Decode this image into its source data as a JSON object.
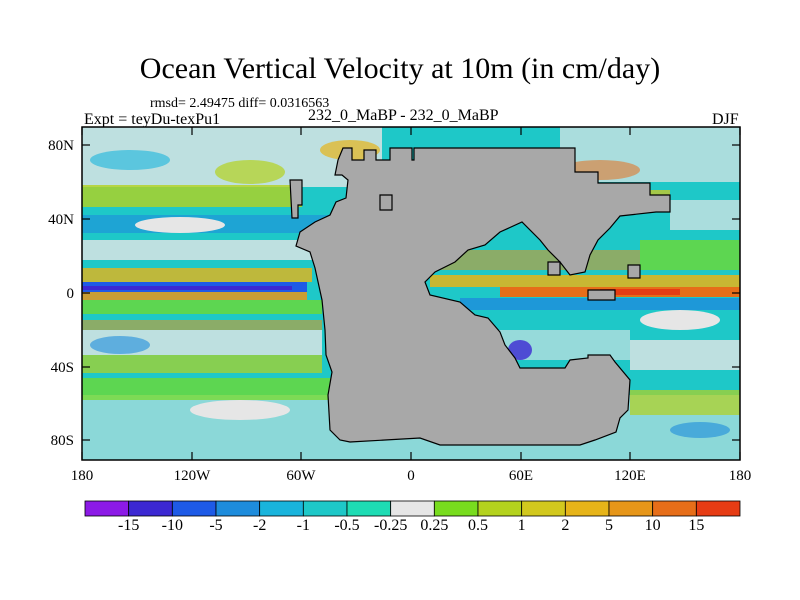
{
  "title": "Ocean Vertical Velocity at 10m (in cm/day)",
  "stats_text": "rmsd= 2.49475 diff= 0.0316563",
  "experiment_text": "Expt = teyDu-texPu1",
  "comparison_text": "232_0_MaBP - 232_0_MaBP",
  "season": "DJF",
  "map": {
    "y_ticks": [
      "80N",
      "40N",
      "0",
      "40S",
      "80S"
    ],
    "x_ticks": [
      "180",
      "120W",
      "60W",
      "0",
      "60E",
      "120E",
      "180"
    ],
    "land_color": "#a8a8a8"
  },
  "colorbar": {
    "colors": [
      "#8c1ae6",
      "#3c28d2",
      "#1e5ae6",
      "#1e8cdc",
      "#19b4dc",
      "#1ec8c8",
      "#1edcb4",
      "#e6e6e6",
      "#78dc1e",
      "#b4d21e",
      "#d2c81e",
      "#e6b419",
      "#e69619",
      "#e66e19",
      "#e63c14"
    ],
    "labels": [
      "-15",
      "-10",
      "-5",
      "-2",
      "-1",
      "-0.5",
      "-0.25",
      "0.25",
      "0.5",
      "1",
      "2",
      "5",
      "10",
      "15"
    ]
  }
}
